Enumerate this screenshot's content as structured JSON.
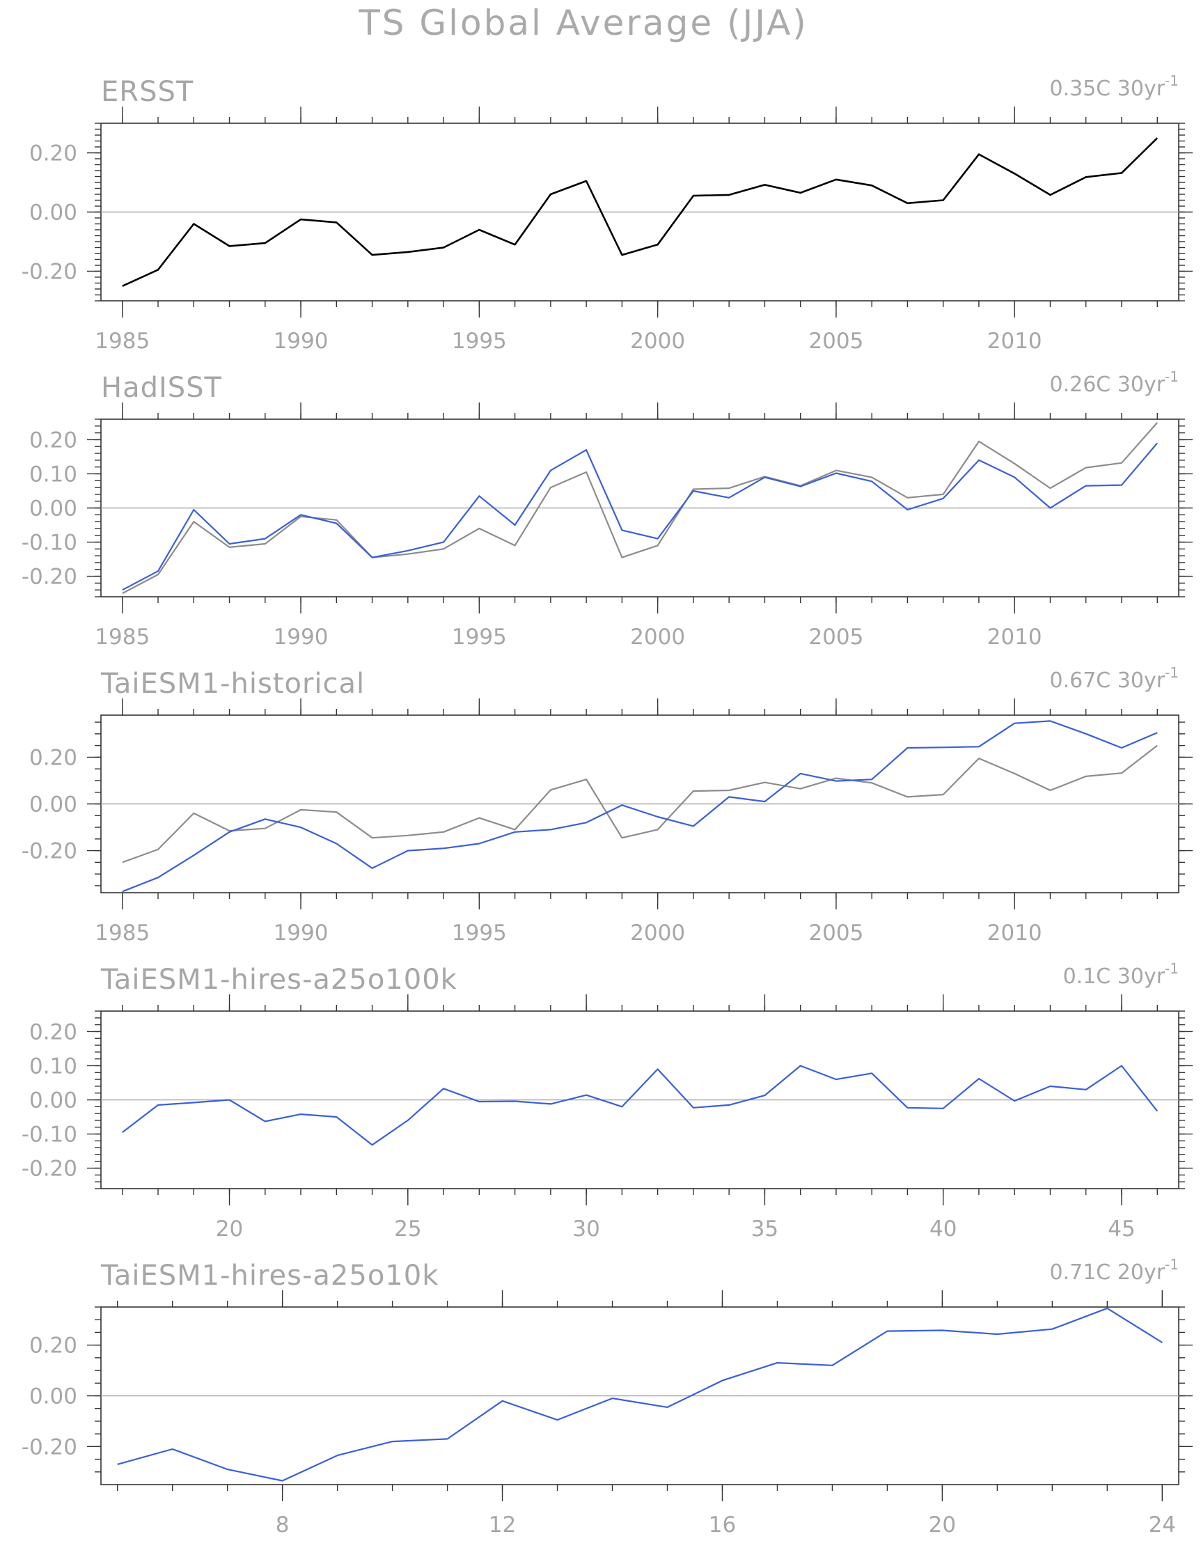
{
  "figure": {
    "title": "TS Global Average (JJA)"
  },
  "colors": {
    "observation": "#000000",
    "reference": "#8c8c8c",
    "model": "#3a5fd9",
    "zero_line": "#aaaaaa",
    "text": "#a6a6a6"
  },
  "chart_data": [
    {
      "type": "line",
      "title": "ERSST",
      "trend": {
        "value": "0.35C",
        "period": "30yr",
        "exponent": "-1"
      },
      "x": [
        1985,
        1986,
        1987,
        1988,
        1989,
        1990,
        1991,
        1992,
        1993,
        1994,
        1995,
        1996,
        1997,
        1998,
        1999,
        2000,
        2001,
        2002,
        2003,
        2004,
        2005,
        2006,
        2007,
        2008,
        2009,
        2010,
        2011,
        2012,
        2013,
        2014
      ],
      "xticks": [
        1985,
        1990,
        1995,
        2000,
        2005,
        2010
      ],
      "xtick_labels": [
        "1985",
        "1990",
        "1995",
        "2000",
        "2005",
        "2010"
      ],
      "yticks": [
        -0.2,
        0.0,
        0.2
      ],
      "ytick_labels": [
        "-0.20",
        "0.00",
        "0.20"
      ],
      "xlim": [
        1984.4,
        2014.6
      ],
      "ylim": [
        -0.3,
        0.3
      ],
      "series": [
        {
          "role": "observation",
          "values": [
            -0.25,
            -0.195,
            -0.04,
            -0.115,
            -0.105,
            -0.025,
            -0.035,
            -0.145,
            -0.135,
            -0.12,
            -0.06,
            -0.11,
            0.06,
            0.105,
            -0.145,
            -0.11,
            0.055,
            0.058,
            0.092,
            0.065,
            0.11,
            0.09,
            0.03,
            0.04,
            0.195,
            0.13,
            0.058,
            0.118,
            0.132,
            0.25
          ]
        }
      ]
    },
    {
      "type": "line",
      "title": "HadISST",
      "trend": {
        "value": "0.26C",
        "period": "30yr",
        "exponent": "-1"
      },
      "x": [
        1985,
        1986,
        1987,
        1988,
        1989,
        1990,
        1991,
        1992,
        1993,
        1994,
        1995,
        1996,
        1997,
        1998,
        1999,
        2000,
        2001,
        2002,
        2003,
        2004,
        2005,
        2006,
        2007,
        2008,
        2009,
        2010,
        2011,
        2012,
        2013,
        2014
      ],
      "xticks": [
        1985,
        1990,
        1995,
        2000,
        2005,
        2010
      ],
      "xtick_labels": [
        "1985",
        "1990",
        "1995",
        "2000",
        "2005",
        "2010"
      ],
      "yticks": [
        -0.2,
        -0.1,
        0.0,
        0.1,
        0.2
      ],
      "ytick_labels": [
        "-0.20",
        "-0.10",
        "0.00",
        "0.10",
        "0.20"
      ],
      "xlim": [
        1984.4,
        2014.6
      ],
      "ylim": [
        -0.26,
        0.26
      ],
      "series": [
        {
          "role": "reference",
          "values": [
            -0.25,
            -0.195,
            -0.04,
            -0.115,
            -0.105,
            -0.025,
            -0.035,
            -0.145,
            -0.135,
            -0.12,
            -0.06,
            -0.11,
            0.06,
            0.105,
            -0.145,
            -0.11,
            0.055,
            0.058,
            0.092,
            0.065,
            0.11,
            0.09,
            0.03,
            0.04,
            0.195,
            0.13,
            0.058,
            0.118,
            0.132,
            0.25
          ]
        },
        {
          "role": "model",
          "values": [
            -0.24,
            -0.185,
            -0.005,
            -0.105,
            -0.09,
            -0.02,
            -0.045,
            -0.145,
            -0.125,
            -0.1,
            0.035,
            -0.05,
            0.11,
            0.17,
            -0.065,
            -0.09,
            0.05,
            0.03,
            0.09,
            0.063,
            0.102,
            0.078,
            -0.005,
            0.028,
            0.14,
            0.09,
            0.0,
            0.065,
            0.067,
            0.19
          ]
        }
      ]
    },
    {
      "type": "line",
      "title": "TaiESM1-historical",
      "trend": {
        "value": "0.67C",
        "period": "30yr",
        "exponent": "-1"
      },
      "x": [
        1985,
        1986,
        1987,
        1988,
        1989,
        1990,
        1991,
        1992,
        1993,
        1994,
        1995,
        1996,
        1997,
        1998,
        1999,
        2000,
        2001,
        2002,
        2003,
        2004,
        2005,
        2006,
        2007,
        2008,
        2009,
        2010,
        2011,
        2012,
        2013,
        2014
      ],
      "xticks": [
        1985,
        1990,
        1995,
        2000,
        2005,
        2010
      ],
      "xtick_labels": [
        "1985",
        "1990",
        "1995",
        "2000",
        "2005",
        "2010"
      ],
      "yticks": [
        -0.2,
        0.0,
        0.2
      ],
      "ytick_labels": [
        "-0.20",
        "0.00",
        "0.20"
      ],
      "xlim": [
        1984.4,
        2014.6
      ],
      "ylim": [
        -0.38,
        0.38
      ],
      "series": [
        {
          "role": "reference",
          "values": [
            -0.25,
            -0.195,
            -0.04,
            -0.115,
            -0.105,
            -0.025,
            -0.035,
            -0.145,
            -0.135,
            -0.12,
            -0.06,
            -0.11,
            0.06,
            0.105,
            -0.145,
            -0.11,
            0.055,
            0.058,
            0.092,
            0.065,
            0.11,
            0.09,
            0.03,
            0.04,
            0.195,
            0.13,
            0.058,
            0.118,
            0.132,
            0.25
          ]
        },
        {
          "role": "model",
          "values": [
            -0.375,
            -0.315,
            -0.22,
            -0.12,
            -0.065,
            -0.1,
            -0.17,
            -0.275,
            -0.2,
            -0.19,
            -0.17,
            -0.12,
            -0.11,
            -0.08,
            -0.005,
            -0.055,
            -0.095,
            0.03,
            0.01,
            0.13,
            0.098,
            0.105,
            0.24,
            0.242,
            0.245,
            0.345,
            0.355,
            0.3,
            0.24,
            0.305
          ]
        }
      ]
    },
    {
      "type": "line",
      "title": "TaiESM1-hires-a25o100k",
      "trend": {
        "value": "0.1C",
        "period": "30yr",
        "exponent": "-1"
      },
      "x": [
        17,
        18,
        19,
        20,
        21,
        22,
        23,
        24,
        25,
        26,
        27,
        28,
        29,
        30,
        31,
        32,
        33,
        34,
        35,
        36,
        37,
        38,
        39,
        40,
        41,
        42,
        43,
        44,
        45,
        46
      ],
      "xticks": [
        20,
        25,
        30,
        35,
        40,
        45
      ],
      "xtick_labels": [
        "20",
        "25",
        "30",
        "35",
        "40",
        "45"
      ],
      "yticks": [
        -0.2,
        -0.1,
        0.0,
        0.1,
        0.2
      ],
      "ytick_labels": [
        "-0.20",
        "-0.10",
        "0.00",
        "0.10",
        "0.20"
      ],
      "xlim": [
        16.4,
        46.6
      ],
      "ylim": [
        -0.26,
        0.26
      ],
      "series": [
        {
          "role": "model",
          "values": [
            -0.095,
            -0.015,
            -0.008,
            0.0,
            -0.063,
            -0.042,
            -0.05,
            -0.132,
            -0.06,
            0.033,
            -0.005,
            -0.004,
            -0.012,
            0.014,
            -0.02,
            0.09,
            -0.023,
            -0.015,
            0.013,
            0.1,
            0.06,
            0.078,
            -0.023,
            -0.025,
            0.062,
            -0.003,
            0.04,
            0.03,
            0.1,
            -0.033
          ]
        }
      ]
    },
    {
      "type": "line",
      "title": "TaiESM1-hires-a25o10k",
      "trend": {
        "value": "0.71C",
        "period": "20yr",
        "exponent": "-1"
      },
      "x": [
        5,
        6,
        7,
        8,
        9,
        10,
        11,
        12,
        13,
        14,
        15,
        16,
        17,
        18,
        19,
        20,
        21,
        22,
        23,
        24
      ],
      "xticks": [
        8,
        12,
        16,
        20,
        24
      ],
      "xtick_labels": [
        "8",
        "12",
        "16",
        "20",
        "24"
      ],
      "yticks": [
        -0.2,
        0.0,
        0.2
      ],
      "ytick_labels": [
        "-0.20",
        "0.00",
        "0.20"
      ],
      "xlim": [
        4.7,
        24.3
      ],
      "ylim": [
        -0.35,
        0.35
      ],
      "series": [
        {
          "role": "model",
          "values": [
            -0.27,
            -0.21,
            -0.29,
            -0.335,
            -0.235,
            -0.18,
            -0.17,
            -0.02,
            -0.095,
            -0.01,
            -0.045,
            0.06,
            0.13,
            0.12,
            0.255,
            0.258,
            0.243,
            0.263,
            0.345,
            0.21
          ]
        }
      ]
    }
  ]
}
